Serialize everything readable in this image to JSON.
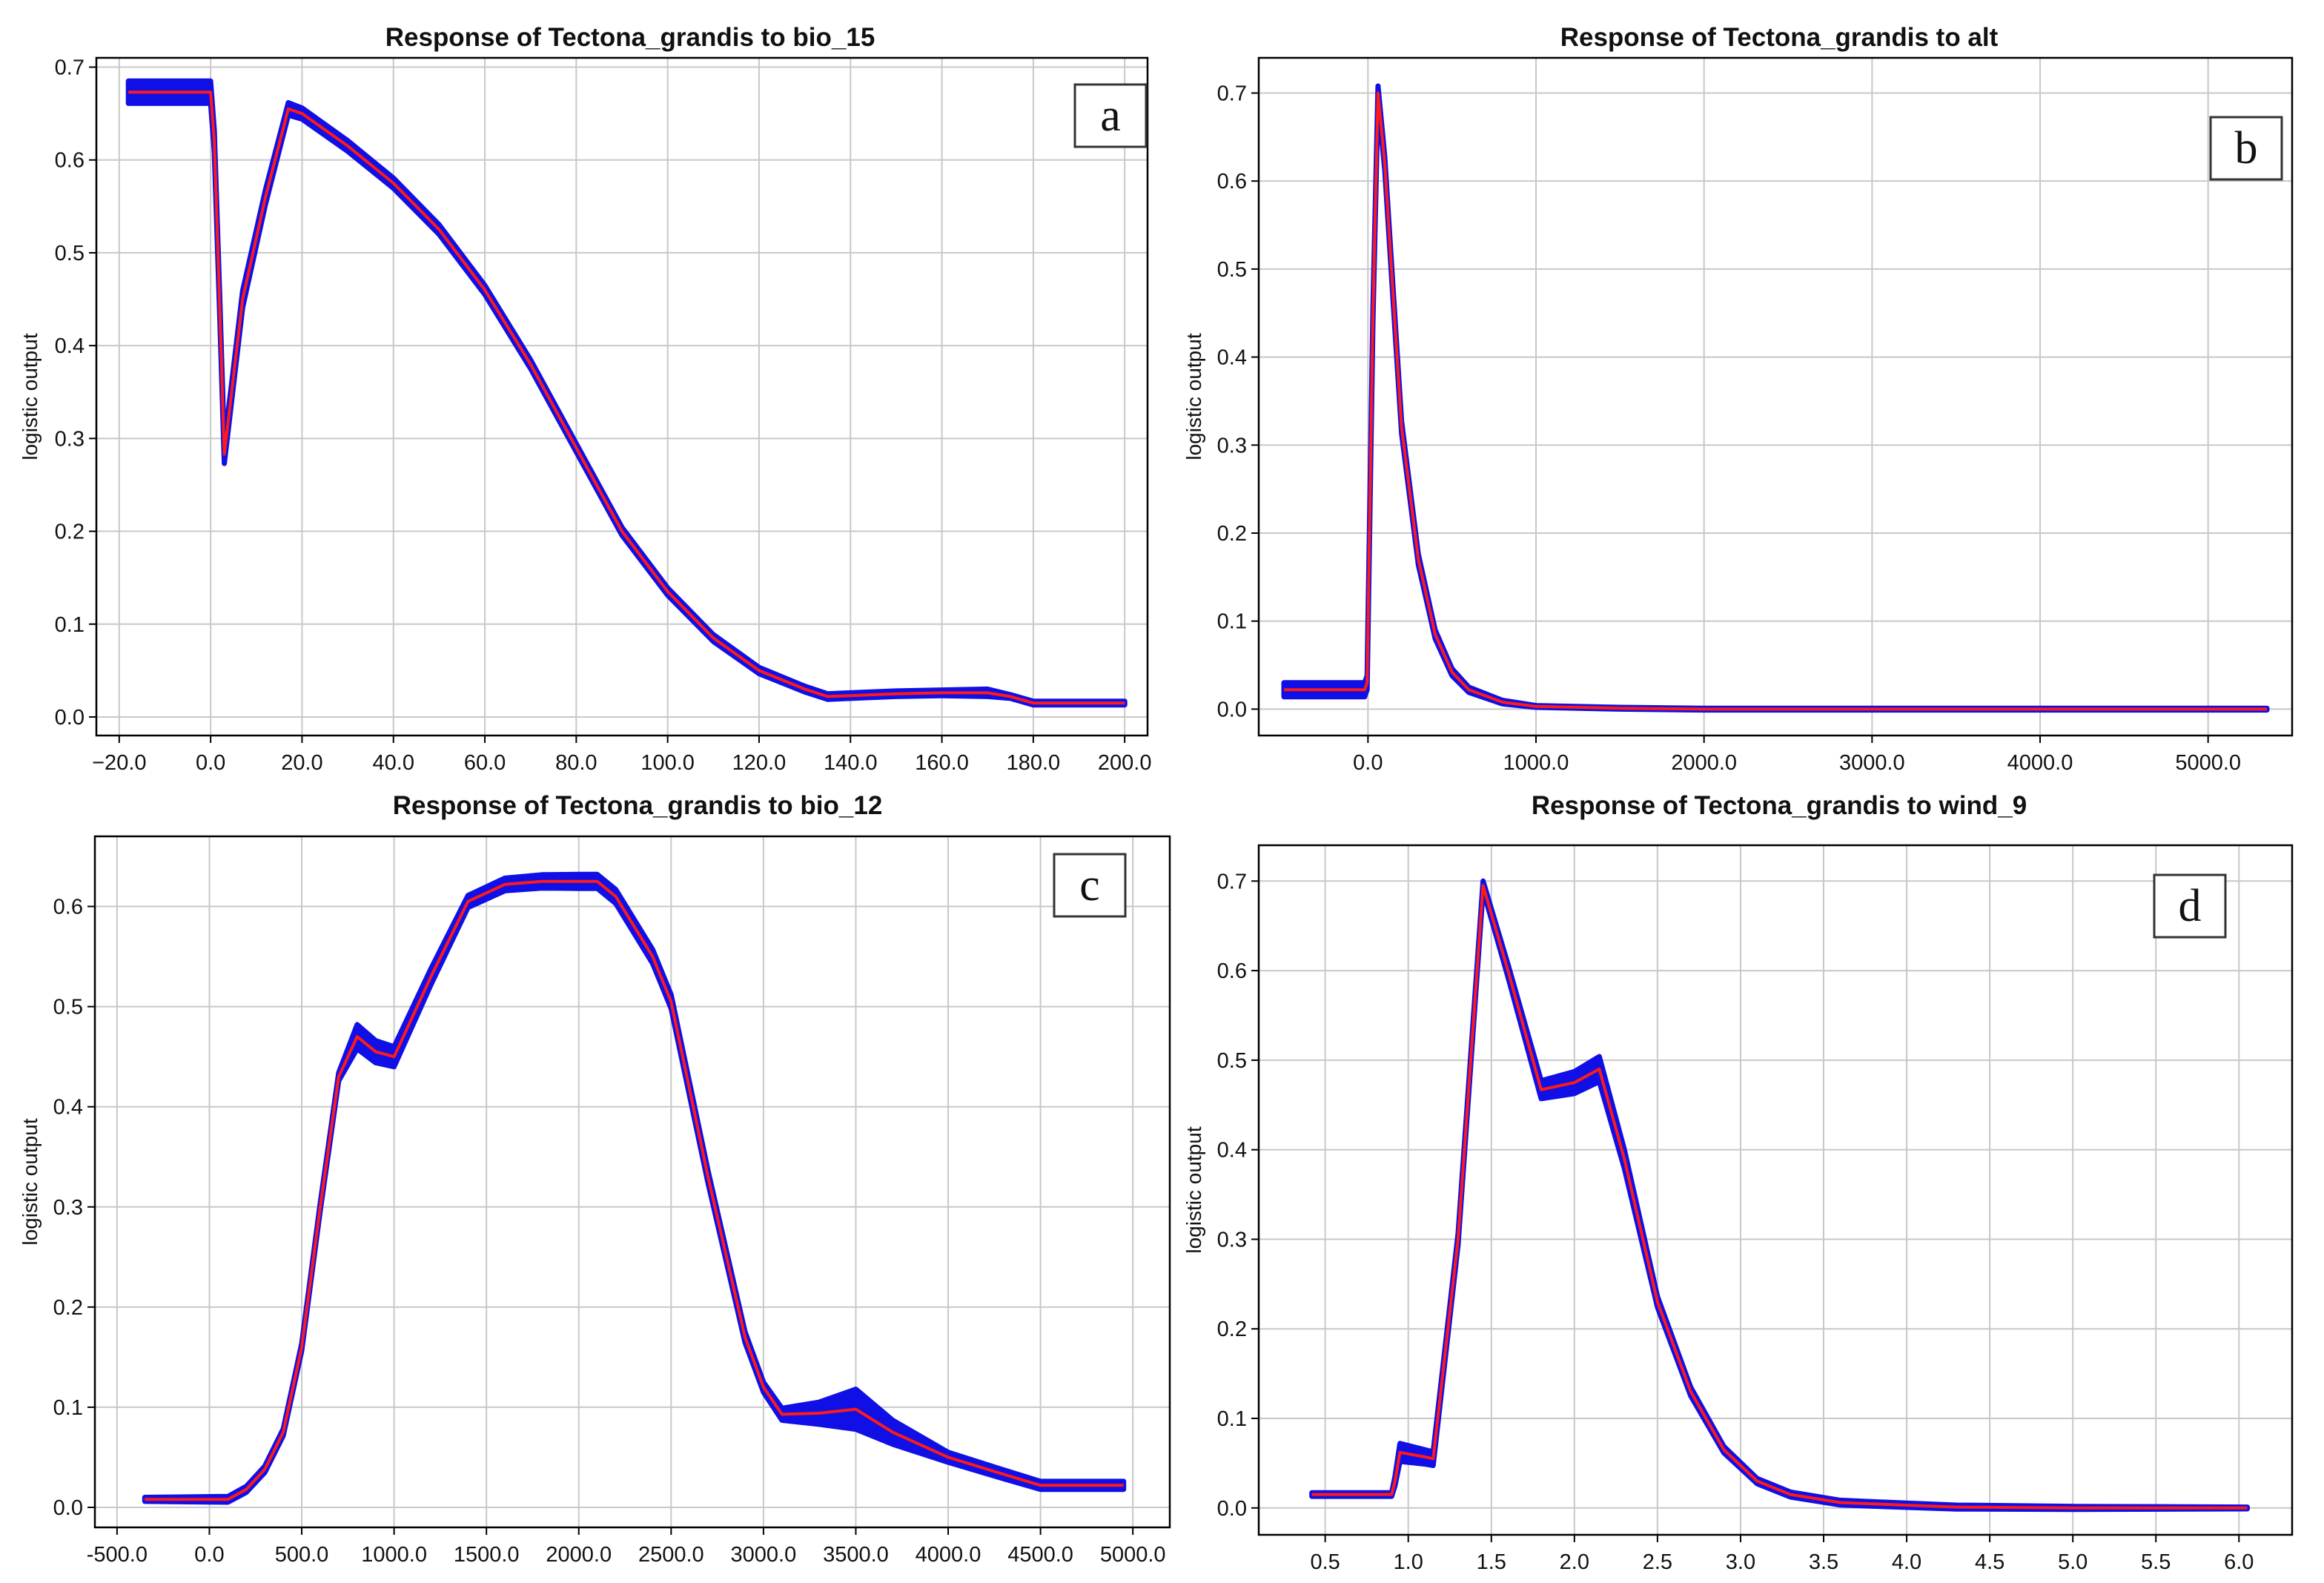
{
  "colors": {
    "band": "#1010e6",
    "mean": "#ff1a1a",
    "grid": "#c8c8c8",
    "axis": "#000000"
  },
  "chart_data": [
    {
      "type": "line",
      "panel_label": "a",
      "title": "Response of Tectona_grandis to bio_15",
      "xlabel": "",
      "ylabel": "logistic output",
      "xlim": [
        -25,
        205
      ],
      "ylim": [
        -0.02,
        0.71
      ],
      "xticks": [
        -20,
        0,
        20,
        40,
        60,
        80,
        100,
        120,
        140,
        160,
        180,
        200
      ],
      "xtick_labels": [
        "−20.0",
        "0.0",
        "20.0",
        "40.0",
        "60.0",
        "80.0",
        "100.0",
        "120.0",
        "140.0",
        "160.0",
        "180.0",
        "200.0"
      ],
      "yticks": [
        0.0,
        0.1,
        0.2,
        0.3,
        0.4,
        0.5,
        0.6,
        0.7
      ],
      "ytick_labels": [
        "0.0",
        "0.1",
        "0.2",
        "0.3",
        "0.4",
        "0.5",
        "0.6",
        "0.7"
      ],
      "series": [
        {
          "name": "mean response",
          "x": [
            -18,
            0,
            0.8,
            2,
            3,
            7,
            12,
            17,
            20,
            30,
            40,
            50,
            60,
            70,
            80,
            90,
            100,
            110,
            120,
            130,
            135,
            140,
            150,
            160,
            170,
            175,
            180,
            190,
            200
          ],
          "y": [
            0.673,
            0.673,
            0.62,
            0.44,
            0.283,
            0.45,
            0.56,
            0.655,
            0.65,
            0.615,
            0.575,
            0.525,
            0.46,
            0.38,
            0.29,
            0.2,
            0.135,
            0.085,
            0.05,
            0.03,
            0.022,
            0.023,
            0.025,
            0.026,
            0.026,
            0.022,
            0.015,
            0.015,
            0.015
          ]
        },
        {
          "name": "band half-width",
          "x": [
            -18,
            0,
            3,
            20,
            100,
            135,
            160,
            170,
            175,
            180,
            200
          ],
          "y": [
            0.012,
            0.012,
            0.01,
            0.006,
            0.004,
            0.003,
            0.003,
            0.004,
            0.002,
            0.002,
            0.002
          ]
        }
      ]
    },
    {
      "type": "line",
      "panel_label": "b",
      "title": "Response of Tectona_grandis to alt",
      "xlabel": "",
      "ylabel": "logistic output",
      "xlim": [
        -650,
        5500
      ],
      "ylim": [
        -0.03,
        0.74
      ],
      "xticks": [
        0,
        1000,
        2000,
        3000,
        4000,
        5000
      ],
      "xtick_labels": [
        "0.0",
        "1000.0",
        "2000.0",
        "3000.0",
        "4000.0",
        "5000.0"
      ],
      "yticks": [
        0.0,
        0.1,
        0.2,
        0.3,
        0.4,
        0.5,
        0.6,
        0.7
      ],
      "ytick_labels": [
        "0.0",
        "0.1",
        "0.2",
        "0.3",
        "0.4",
        "0.5",
        "0.6",
        "0.7"
      ],
      "series": [
        {
          "name": "mean response",
          "x": [
            -500,
            -20,
            -5,
            30,
            60,
            100,
            150,
            200,
            300,
            400,
            500,
            600,
            800,
            1000,
            1500,
            2000,
            5350
          ],
          "y": [
            0.022,
            0.022,
            0.03,
            0.45,
            0.7,
            0.62,
            0.47,
            0.32,
            0.17,
            0.085,
            0.042,
            0.022,
            0.008,
            0.003,
            0.001,
            0.0,
            0.0
          ]
        },
        {
          "name": "band half-width",
          "x": [
            -500,
            -20,
            60,
            300,
            600,
            1000,
            5350
          ],
          "y": [
            0.008,
            0.008,
            0.008,
            0.006,
            0.003,
            0.001,
            0.001
          ]
        }
      ]
    },
    {
      "type": "line",
      "panel_label": "c",
      "title": "Response of Tectona_grandis to bio_12",
      "xlabel": "",
      "ylabel": "logistic output",
      "xlim": [
        -620,
        5200
      ],
      "ylim": [
        -0.02,
        0.67
      ],
      "xticks": [
        -500,
        0,
        500,
        1000,
        1500,
        2000,
        2500,
        3000,
        3500,
        4000,
        4500,
        5000
      ],
      "xtick_labels": [
        "-500.0",
        "0.0",
        "500.0",
        "1000.0",
        "1500.0",
        "2000.0",
        "2500.0",
        "3000.0",
        "3500.0",
        "4000.0",
        "4500.0",
        "5000.0"
      ],
      "yticks": [
        0.0,
        0.1,
        0.2,
        0.3,
        0.4,
        0.5,
        0.6
      ],
      "ytick_labels": [
        "0.0",
        "0.1",
        "0.2",
        "0.3",
        "0.4",
        "0.5",
        "0.6"
      ],
      "series": [
        {
          "name": "mean response",
          "x": [
            -350,
            100,
            200,
            300,
            400,
            500,
            600,
            700,
            800,
            900,
            1000,
            1200,
            1400,
            1600,
            1800,
            2000,
            2100,
            2200,
            2400,
            2500,
            2700,
            2900,
            3000,
            3100,
            3300,
            3500,
            3700,
            4000,
            4300,
            4500,
            4950
          ],
          "y": [
            0.008,
            0.008,
            0.018,
            0.038,
            0.075,
            0.16,
            0.3,
            0.43,
            0.47,
            0.455,
            0.45,
            0.53,
            0.605,
            0.622,
            0.625,
            0.625,
            0.625,
            0.61,
            0.55,
            0.505,
            0.33,
            0.17,
            0.12,
            0.093,
            0.094,
            0.098,
            0.075,
            0.05,
            0.033,
            0.022,
            0.022
          ]
        },
        {
          "name": "band half-width",
          "x": [
            -350,
            700,
            800,
            1000,
            1400,
            2000,
            2500,
            3000,
            3100,
            3300,
            3500,
            3700,
            4000,
            4500,
            4950
          ],
          "y": [
            0.002,
            0.004,
            0.012,
            0.01,
            0.006,
            0.007,
            0.007,
            0.005,
            0.006,
            0.011,
            0.02,
            0.012,
            0.005,
            0.004,
            0.004
          ]
        }
      ]
    },
    {
      "type": "line",
      "panel_label": "d",
      "title": "Response of Tectona_grandis to wind_9",
      "xlabel": "",
      "ylabel": "logistic output",
      "xlim": [
        0.1,
        6.32
      ],
      "ylim": [
        -0.03,
        0.74
      ],
      "xticks": [
        0.5,
        1.0,
        1.5,
        2.0,
        2.5,
        3.0,
        3.5,
        4.0,
        4.5,
        5.0,
        5.5,
        6.0
      ],
      "xtick_labels": [
        "0.5",
        "1.0",
        "1.5",
        "2.0",
        "2.5",
        "3.0",
        "3.5",
        "4.0",
        "4.5",
        "5.0",
        "5.5",
        "6.0"
      ],
      "yticks": [
        0.0,
        0.1,
        0.2,
        0.3,
        0.4,
        0.5,
        0.6,
        0.7
      ],
      "ytick_labels": [
        "0.0",
        "0.1",
        "0.2",
        "0.3",
        "0.4",
        "0.5",
        "0.6",
        "0.7"
      ],
      "series": [
        {
          "name": "mean response",
          "x": [
            0.42,
            0.9,
            0.92,
            0.95,
            1.1,
            1.15,
            1.3,
            1.45,
            1.6,
            1.8,
            2.0,
            2.15,
            2.3,
            2.5,
            2.7,
            2.9,
            3.1,
            3.3,
            3.6,
            4.0,
            4.3,
            5.0,
            6.05
          ],
          "y": [
            0.015,
            0.015,
            0.03,
            0.062,
            0.057,
            0.055,
            0.3,
            0.695,
            0.6,
            0.467,
            0.475,
            0.49,
            0.39,
            0.23,
            0.13,
            0.065,
            0.03,
            0.015,
            0.006,
            0.003,
            0.001,
            0.0,
            0.0
          ]
        },
        {
          "name": "band half-width",
          "x": [
            0.42,
            0.9,
            0.95,
            1.1,
            1.45,
            1.8,
            2.15,
            2.5,
            3.0,
            6.05
          ],
          "y": [
            0.002,
            0.002,
            0.01,
            0.008,
            0.005,
            0.01,
            0.014,
            0.006,
            0.003,
            0.001
          ]
        }
      ]
    }
  ]
}
